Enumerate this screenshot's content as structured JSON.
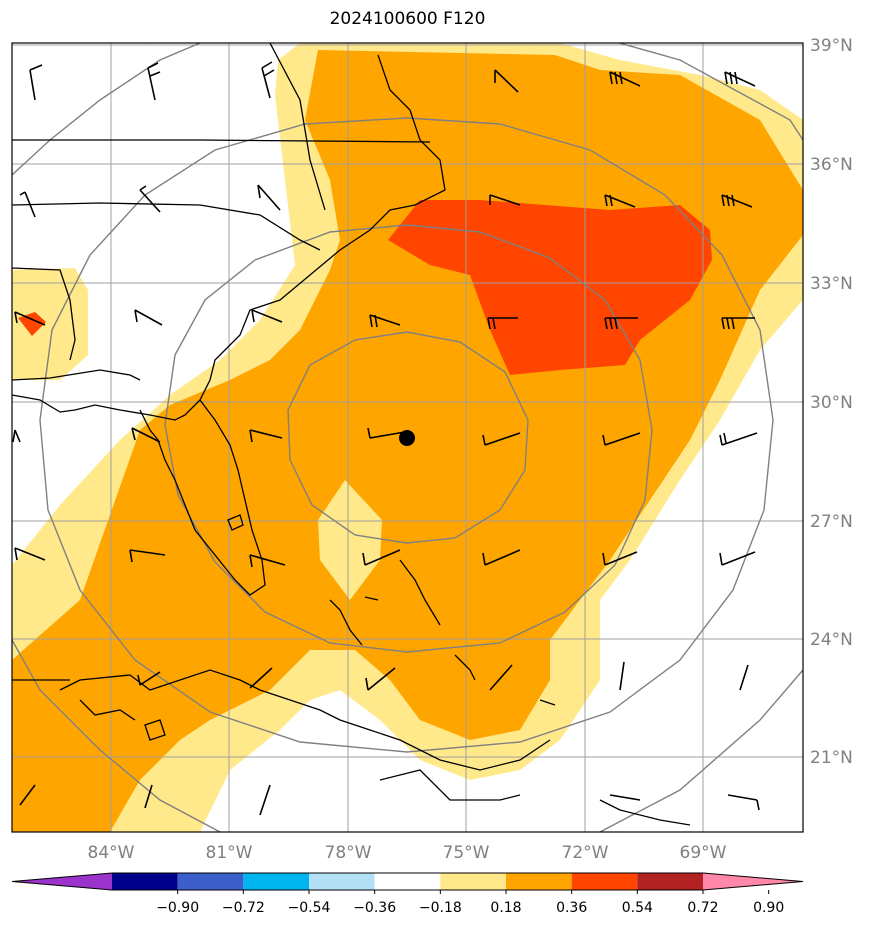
{
  "title": "2024100600 F120",
  "lat_labels": [
    "39°N",
    "36°N",
    "33°N",
    "30°N",
    "27°N",
    "24°N",
    "21°N"
  ],
  "lon_labels": [
    "84°W",
    "81°W",
    "78°W",
    "75°W",
    "72°W",
    "69°W"
  ],
  "colorbar": {
    "ticks": [
      "−0.90",
      "−0.72",
      "−0.54",
      "−0.36",
      "−0.18",
      "0.18",
      "0.36",
      "0.54",
      "0.72",
      "0.90"
    ],
    "colors": [
      "#9933cc",
      "#00008b",
      "#3c5fcc",
      "#00b4f0",
      "#b4e0f6",
      "#ffffff",
      "#ffe98a",
      "#ffa500",
      "#ff4500",
      "#b22222",
      "#ff88aa"
    ]
  },
  "fill_colors": {
    "low": "#ffe98a",
    "mid": "#ffa500",
    "high": "#ff4500"
  },
  "storm_center": {
    "lat": 29.0,
    "lon": -76.5
  }
}
